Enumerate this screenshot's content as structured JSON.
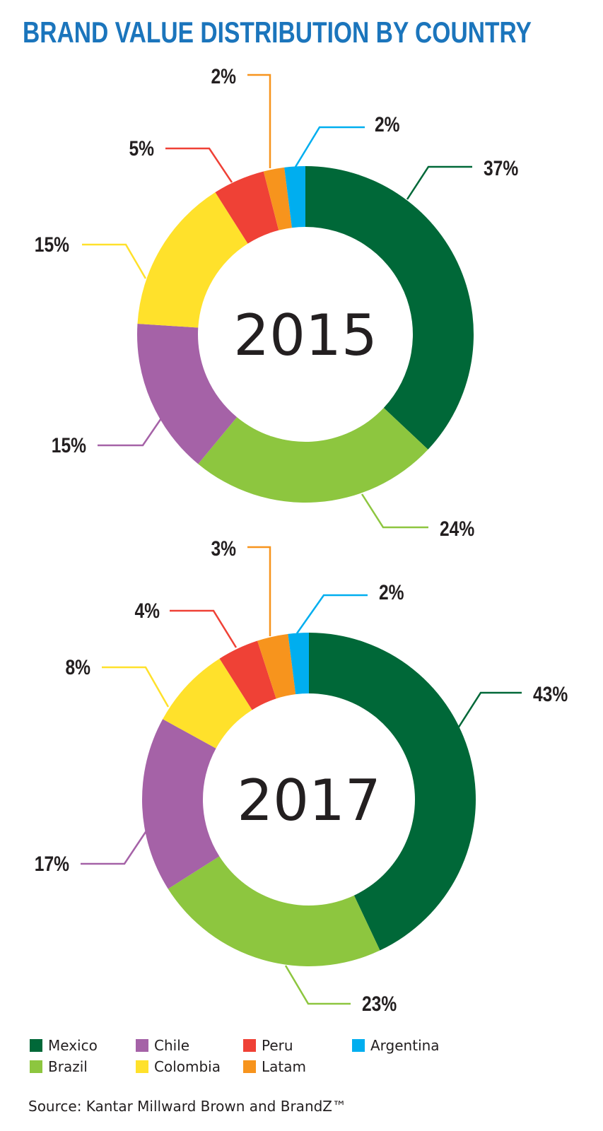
{
  "title": "BRAND VALUE DISTRIBUTION BY COUNTRY",
  "source": "Source: Kantar Millward Brown and BrandZ™",
  "colors": {
    "Mexico": "#006838",
    "Brazil": "#8dc63f",
    "Chile": "#a562a7",
    "Colombia": "#ffe12b",
    "Peru": "#ef4136",
    "Latam": "#f7941d",
    "Argentina": "#00aeef"
  },
  "legend": [
    {
      "label": "Mexico",
      "color": "#006838"
    },
    {
      "label": "Brazil",
      "color": "#8dc63f"
    },
    {
      "label": "Chile",
      "color": "#a562a7"
    },
    {
      "label": "Colombia",
      "color": "#ffe12b"
    },
    {
      "label": "Peru",
      "color": "#ef4136"
    },
    {
      "label": "Latam",
      "color": "#f7941d"
    },
    {
      "label": "Argentina",
      "color": "#00aeef"
    }
  ],
  "chart_data": [
    {
      "type": "pie",
      "title": "2015",
      "categories": [
        "Mexico",
        "Brazil",
        "Chile",
        "Colombia",
        "Peru",
        "Latam",
        "Argentina"
      ],
      "values": [
        37,
        24,
        15,
        15,
        5,
        2,
        2
      ],
      "labels": [
        "37%",
        "24%",
        "15%",
        "15%",
        "5%",
        "2%",
        "2%"
      ]
    },
    {
      "type": "pie",
      "title": "2017",
      "categories": [
        "Mexico",
        "Brazil",
        "Chile",
        "Colombia",
        "Peru",
        "Latam",
        "Argentina"
      ],
      "values": [
        43,
        23,
        17,
        8,
        4,
        3,
        2
      ],
      "labels": [
        "43%",
        "23%",
        "17%",
        "8%",
        "4%",
        "3%",
        "2%"
      ]
    }
  ]
}
